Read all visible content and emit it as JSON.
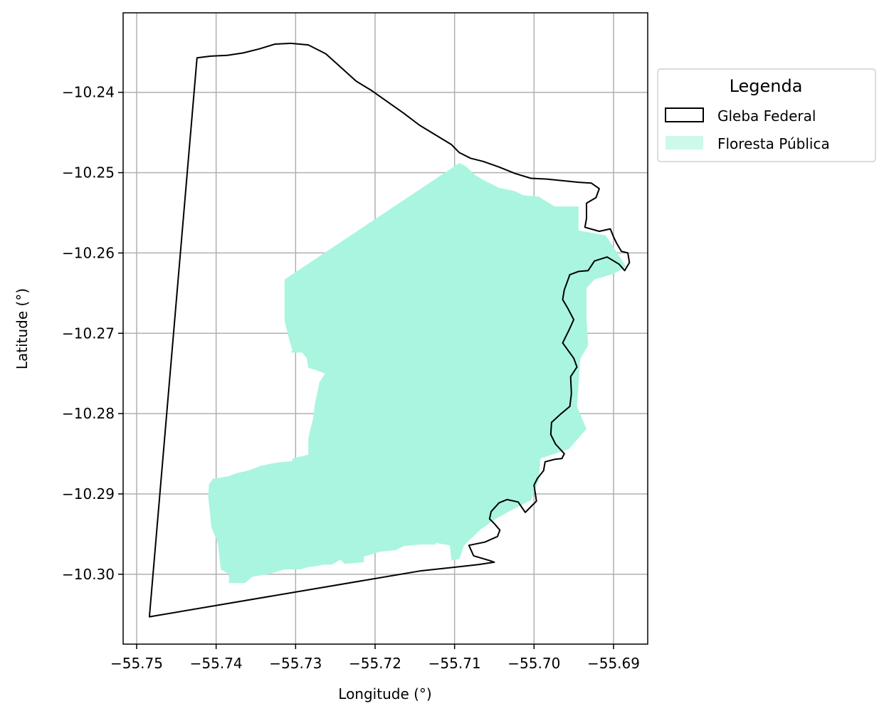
{
  "chart_data": {
    "type": "map",
    "xlabel": "Longitude (°)",
    "ylabel": "Latitude (°)",
    "xlim": [
      -55.7517,
      -55.6857
    ],
    "ylim": [
      -10.3087,
      -10.2301
    ],
    "grid": true,
    "x_ticks": [
      -55.75,
      -55.74,
      -55.73,
      -55.72,
      -55.71,
      -55.7,
      -55.69
    ],
    "x_tick_labels": [
      "−55.75",
      "−55.74",
      "−55.73",
      "−55.72",
      "−55.71",
      "−55.70",
      "−55.69"
    ],
    "y_ticks": [
      -10.24,
      -10.25,
      -10.26,
      -10.27,
      -10.28,
      -10.29,
      -10.3
    ],
    "y_tick_labels": [
      "−10.24",
      "−10.25",
      "−10.26",
      "−10.27",
      "−10.28",
      "−10.29",
      "−10.30"
    ],
    "legend": {
      "title": "Legenda",
      "placement": "outside-top-right",
      "entries": [
        {
          "label": "Gleba Federal",
          "style": "outline",
          "color": "#000000"
        },
        {
          "label": "Floresta Pública",
          "style": "fill",
          "color": "#aaf5e0"
        }
      ]
    },
    "layers": [
      {
        "name": "Floresta Pública",
        "color": "#aaf5e0",
        "coordinates": [
          [
            -55.7094,
            -10.2488
          ],
          [
            -55.7086,
            -10.2492
          ],
          [
            -55.7074,
            -10.2503
          ],
          [
            -55.7064,
            -10.2509
          ],
          [
            -55.7054,
            -10.2514
          ],
          [
            -55.7044,
            -10.2519
          ],
          [
            -55.7024,
            -10.2523
          ],
          [
            -55.7014,
            -10.2528
          ],
          [
            -55.6994,
            -10.253
          ],
          [
            -55.6974,
            -10.2542
          ],
          [
            -55.6944,
            -10.2542
          ],
          [
            -55.6944,
            -10.2572
          ],
          [
            -55.691,
            -10.2578
          ],
          [
            -55.6884,
            -10.2617
          ],
          [
            -55.69,
            -10.2626
          ],
          [
            -55.6924,
            -10.2633
          ],
          [
            -55.6934,
            -10.2644
          ],
          [
            -55.6934,
            -10.2681
          ],
          [
            -55.6932,
            -10.2715
          ],
          [
            -55.6942,
            -10.2732
          ],
          [
            -55.6944,
            -10.2765
          ],
          [
            -55.6946,
            -10.2791
          ],
          [
            -55.6934,
            -10.2819
          ],
          [
            -55.6956,
            -10.2844
          ],
          [
            -55.6992,
            -10.2856
          ],
          [
            -55.6994,
            -10.2883
          ],
          [
            -55.7004,
            -10.2908
          ],
          [
            -55.7024,
            -10.2918
          ],
          [
            -55.7048,
            -10.2931
          ],
          [
            -55.7067,
            -10.2944
          ],
          [
            -55.7088,
            -10.2964
          ],
          [
            -55.7094,
            -10.2981
          ],
          [
            -55.7104,
            -10.2983
          ],
          [
            -55.7106,
            -10.2964
          ],
          [
            -55.7124,
            -10.2961
          ],
          [
            -55.7124,
            -10.2963
          ],
          [
            -55.7144,
            -10.2963
          ],
          [
            -55.7164,
            -10.2965
          ],
          [
            -55.7174,
            -10.297
          ],
          [
            -55.7194,
            -10.2972
          ],
          [
            -55.7204,
            -10.2975
          ],
          [
            -55.7214,
            -10.2978
          ],
          [
            -55.7214,
            -10.2985
          ],
          [
            -55.7238,
            -10.2987
          ],
          [
            -55.7244,
            -10.2982
          ],
          [
            -55.7254,
            -10.2988
          ],
          [
            -55.7264,
            -10.2988
          ],
          [
            -55.7274,
            -10.299
          ],
          [
            -55.7284,
            -10.2991
          ],
          [
            -55.7294,
            -10.2994
          ],
          [
            -55.7314,
            -10.2994
          ],
          [
            -55.7324,
            -10.2997
          ],
          [
            -55.7334,
            -10.3
          ],
          [
            -55.7354,
            -10.3003
          ],
          [
            -55.7364,
            -10.3011
          ],
          [
            -55.7384,
            -10.3011
          ],
          [
            -55.7384,
            -10.3
          ],
          [
            -55.7394,
            -10.2994
          ],
          [
            -55.7398,
            -10.2961
          ],
          [
            -55.7406,
            -10.2941
          ],
          [
            -55.7408,
            -10.2921
          ],
          [
            -55.741,
            -10.2904
          ],
          [
            -55.7409,
            -10.2888
          ],
          [
            -55.7404,
            -10.2881
          ],
          [
            -55.7396,
            -10.288
          ],
          [
            -55.7384,
            -10.2878
          ],
          [
            -55.7374,
            -10.2874
          ],
          [
            -55.7364,
            -10.2872
          ],
          [
            -55.7354,
            -10.2869
          ],
          [
            -55.7344,
            -10.2865
          ],
          [
            -55.7334,
            -10.2863
          ],
          [
            -55.7324,
            -10.2861
          ],
          [
            -55.7304,
            -10.2859
          ],
          [
            -55.7304,
            -10.2856
          ],
          [
            -55.7284,
            -10.2851
          ],
          [
            -55.7284,
            -10.283
          ],
          [
            -55.7278,
            -10.2806
          ],
          [
            -55.7276,
            -10.2789
          ],
          [
            -55.727,
            -10.2761
          ],
          [
            -55.7263,
            -10.275
          ],
          [
            -55.7274,
            -10.2746
          ],
          [
            -55.7284,
            -10.2743
          ],
          [
            -55.7286,
            -10.2731
          ],
          [
            -55.7292,
            -10.2724
          ],
          [
            -55.7306,
            -10.2724
          ],
          [
            -55.7304,
            -10.2721
          ],
          [
            -55.7308,
            -10.2708
          ],
          [
            -55.7314,
            -10.2684
          ],
          [
            -55.7314,
            -10.2633
          ]
        ]
      },
      {
        "name": "Gleba Federal",
        "color": "#000000",
        "coordinates": [
          [
            -55.7424,
            -10.2357
          ],
          [
            -55.7407,
            -10.2355
          ],
          [
            -55.7386,
            -10.2354
          ],
          [
            -55.7366,
            -10.2351
          ],
          [
            -55.7346,
            -10.2346
          ],
          [
            -55.7326,
            -10.234
          ],
          [
            -55.7306,
            -10.2339
          ],
          [
            -55.7284,
            -10.2341
          ],
          [
            -55.7262,
            -10.2352
          ],
          [
            -55.7244,
            -10.2368
          ],
          [
            -55.7224,
            -10.2386
          ],
          [
            -55.7204,
            -10.2398
          ],
          [
            -55.7184,
            -10.2412
          ],
          [
            -55.7164,
            -10.2426
          ],
          [
            -55.7144,
            -10.2441
          ],
          [
            -55.7124,
            -10.2453
          ],
          [
            -55.7104,
            -10.2465
          ],
          [
            -55.7094,
            -10.2475
          ],
          [
            -55.708,
            -10.2482
          ],
          [
            -55.7064,
            -10.2486
          ],
          [
            -55.7044,
            -10.2493
          ],
          [
            -55.7024,
            -10.2501
          ],
          [
            -55.7004,
            -10.2507
          ],
          [
            -55.6984,
            -10.2508
          ],
          [
            -55.6964,
            -10.251
          ],
          [
            -55.6944,
            -10.2512
          ],
          [
            -55.6928,
            -10.2513
          ],
          [
            -55.6918,
            -10.252
          ],
          [
            -55.6922,
            -10.2531
          ],
          [
            -55.6934,
            -10.2538
          ],
          [
            -55.6934,
            -10.2557
          ],
          [
            -55.6936,
            -10.2568
          ],
          [
            -55.6918,
            -10.2573
          ],
          [
            -55.6904,
            -10.257
          ],
          [
            -55.69,
            -10.258
          ],
          [
            -55.6896,
            -10.2588
          ],
          [
            -55.689,
            -10.2598
          ],
          [
            -55.6882,
            -10.26
          ],
          [
            -55.688,
            -10.2612
          ],
          [
            -55.6886,
            -10.2622
          ],
          [
            -55.6893,
            -10.2614
          ],
          [
            -55.6908,
            -10.2605
          ],
          [
            -55.6924,
            -10.261
          ],
          [
            -55.6932,
            -10.2622
          ],
          [
            -55.6944,
            -10.2623
          ],
          [
            -55.6955,
            -10.2627
          ],
          [
            -55.6962,
            -10.2646
          ],
          [
            -55.6964,
            -10.2658
          ],
          [
            -55.6958,
            -10.2668
          ],
          [
            -55.695,
            -10.2683
          ],
          [
            -55.6956,
            -10.2696
          ],
          [
            -55.6964,
            -10.2712
          ],
          [
            -55.695,
            -10.2731
          ],
          [
            -55.6946,
            -10.2742
          ],
          [
            -55.6954,
            -10.2754
          ],
          [
            -55.6953,
            -10.2775
          ],
          [
            -55.6955,
            -10.2791
          ],
          [
            -55.6967,
            -10.2801
          ],
          [
            -55.6978,
            -10.2811
          ],
          [
            -55.6979,
            -10.2826
          ],
          [
            -55.6973,
            -10.2838
          ],
          [
            -55.6962,
            -10.285
          ],
          [
            -55.6965,
            -10.2856
          ],
          [
            -55.6974,
            -10.2857
          ],
          [
            -55.6986,
            -10.286
          ],
          [
            -55.6988,
            -10.2871
          ],
          [
            -55.6996,
            -10.2881
          ],
          [
            -55.7,
            -10.2889
          ],
          [
            -55.6997,
            -10.2909
          ],
          [
            -55.7004,
            -10.2916
          ],
          [
            -55.7011,
            -10.2923
          ],
          [
            -55.702,
            -10.291
          ],
          [
            -55.7034,
            -10.2907
          ],
          [
            -55.7044,
            -10.2911
          ],
          [
            -55.7054,
            -10.2922
          ],
          [
            -55.7056,
            -10.2931
          ],
          [
            -55.705,
            -10.2937
          ],
          [
            -55.7043,
            -10.2945
          ],
          [
            -55.7046,
            -10.2953
          ],
          [
            -55.7062,
            -10.296
          ],
          [
            -55.7082,
            -10.2964
          ],
          [
            -55.7076,
            -10.2977
          ],
          [
            -55.7056,
            -10.2983
          ],
          [
            -55.705,
            -10.2985
          ],
          [
            -55.707,
            -10.2988
          ],
          [
            -55.7144,
            -10.2996
          ],
          [
            -55.7484,
            -10.3053
          ],
          [
            -55.7424,
            -10.2357
          ]
        ]
      }
    ]
  }
}
